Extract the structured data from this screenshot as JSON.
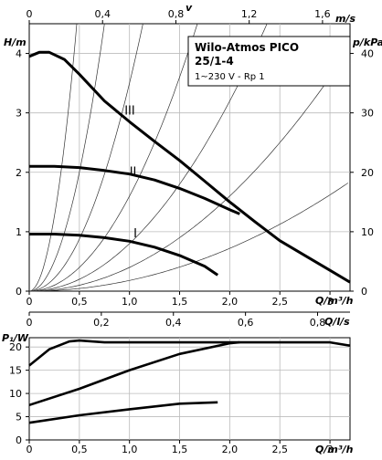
{
  "info_box": {
    "title": "Wilo-Atmos PICO",
    "model": "25/1-4",
    "spec": "1~230 V - Rp 1"
  },
  "chart_data": [
    {
      "type": "line",
      "title": "",
      "x_axis": {
        "label": "Q/m³/h",
        "range": [
          0,
          3.2
        ],
        "ticks": [
          "0",
          "0,5",
          "1,0",
          "1,5",
          "2,0",
          "2,5",
          "3"
        ]
      },
      "y_axis_left": {
        "label": "H/m",
        "range": [
          0,
          4.5
        ],
        "ticks": [
          "0",
          "1",
          "2",
          "3",
          "4"
        ]
      },
      "y_axis_right": {
        "label": "p/kPa",
        "range": [
          0,
          45
        ],
        "ticks": [
          "0",
          "10",
          "20",
          "30",
          "40"
        ]
      },
      "top_axis": {
        "label": "v",
        "unit": "m/s",
        "range": [
          0,
          1.75
        ],
        "ticks": [
          "0",
          "0,4",
          "0,8",
          "1,2",
          "1,6"
        ]
      },
      "grid": true,
      "series": [
        {
          "name": "III",
          "x": [
            0,
            0.1,
            0.2,
            0.35,
            0.5,
            0.75,
            1.0,
            1.25,
            1.5,
            1.75,
            2.0,
            2.25,
            2.5,
            2.75,
            3.0,
            3.2
          ],
          "y": [
            3.95,
            4.02,
            4.02,
            3.9,
            3.65,
            3.2,
            2.85,
            2.52,
            2.2,
            1.85,
            1.5,
            1.17,
            0.85,
            0.6,
            0.35,
            0.15
          ]
        },
        {
          "name": "II",
          "x": [
            0,
            0.25,
            0.5,
            0.75,
            1.0,
            1.25,
            1.5,
            1.75,
            2.0,
            2.1
          ],
          "y": [
            2.1,
            2.1,
            2.08,
            2.03,
            1.97,
            1.87,
            1.73,
            1.56,
            1.37,
            1.3
          ]
        },
        {
          "name": "I",
          "x": [
            0,
            0.25,
            0.5,
            0.75,
            1.0,
            1.25,
            1.5,
            1.75,
            1.88
          ],
          "y": [
            0.96,
            0.96,
            0.94,
            0.9,
            0.84,
            0.74,
            0.6,
            0.42,
            0.27
          ]
        }
      ],
      "system_curve_coefficients": [
        0.18,
        0.4,
        0.8,
        1.6,
        3.5,
        8.0,
        20.0
      ]
    },
    {
      "type": "line",
      "title": "",
      "x_axis": {
        "label": "Q/m³/h",
        "range": [
          0,
          3.2
        ],
        "ticks": [
          "0",
          "0,5",
          "1,0",
          "1,5",
          "2,0",
          "2,5",
          "3"
        ]
      },
      "y_axis_left": {
        "label": "P₁/W",
        "range": [
          0,
          22
        ],
        "ticks": [
          "0",
          "5",
          "10",
          "15",
          "20"
        ]
      },
      "top_axis": {
        "label": "Q/l/s",
        "range": [
          0,
          0.89
        ],
        "ticks": [
          "0",
          "0,2",
          "0,4",
          "0,6",
          "0,8"
        ]
      },
      "grid": true,
      "series": [
        {
          "name": "III",
          "x": [
            0,
            0.2,
            0.4,
            0.5,
            0.75,
            1.0,
            1.5,
            2.0,
            2.5,
            3.0,
            3.2
          ],
          "y": [
            16,
            19.5,
            21.2,
            21.4,
            21.0,
            21.0,
            21.0,
            21.0,
            21.0,
            21.0,
            20.3
          ]
        },
        {
          "name": "II",
          "x": [
            0,
            0.5,
            1.0,
            1.5,
            2.0,
            2.1
          ],
          "y": [
            7.5,
            11,
            15,
            18.5,
            20.8,
            21.0
          ]
        },
        {
          "name": "I",
          "x": [
            0,
            0.5,
            1.0,
            1.5,
            1.88
          ],
          "y": [
            3.7,
            5.3,
            6.6,
            7.8,
            8.1
          ]
        }
      ]
    }
  ]
}
